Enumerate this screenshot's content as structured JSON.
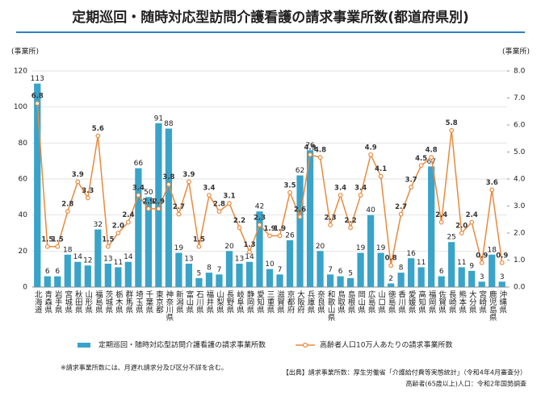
{
  "chart_data": {
    "type": "bar_line",
    "title": "定期巡回・随時対応型訪問介護看護の請求事業所数(都道府県別)",
    "y_label": "(事業所)",
    "y2_label": "(事業所)",
    "categories": [
      "北海道",
      "青森県",
      "岩手県",
      "宮城県",
      "秋田県",
      "山形県",
      "福島県",
      "茨城県",
      "栃木県",
      "群馬県",
      "埼玉県",
      "千葉県",
      "東京都",
      "神奈川県",
      "新潟県",
      "富山県",
      "石川県",
      "福井県",
      "山梨県",
      "長野県",
      "岐阜県",
      "静岡県",
      "愛知県",
      "三重県",
      "滋賀県",
      "京都府",
      "大阪府",
      "兵庫県",
      "奈良県",
      "和歌山県",
      "鳥取県",
      "島根県",
      "岡山県",
      "広島県",
      "山口県",
      "徳島県",
      "香川県",
      "愛媛県",
      "高知県",
      "福岡県",
      "佐賀県",
      "長崎県",
      "熊本県",
      "大分県",
      "宮崎県",
      "鹿児島県",
      "沖縄県"
    ],
    "series": [
      {
        "name": "定期巡回・随時対応型訪問介護看護の請求事業所数",
        "type": "bar",
        "color": "#3aa3c9",
        "values": [
          113,
          6,
          6,
          18,
          14,
          12,
          32,
          13,
          11,
          14,
          66,
          50,
          91,
          88,
          19,
          13,
          5,
          8,
          7,
          20,
          13,
          14,
          42,
          10,
          7,
          26,
          62,
          76,
          20,
          7,
          6,
          5,
          19,
          40,
          19,
          2,
          8,
          16,
          11,
          67,
          6,
          25,
          11,
          9,
          3,
          18,
          3
        ]
      },
      {
        "name": "高齢者人口10万人あたりの請求事業所数",
        "type": "line",
        "axis": "y2",
        "color": "#e98a3c",
        "values": [
          6.8,
          1.5,
          1.5,
          2.8,
          3.9,
          3.3,
          5.6,
          1.5,
          2.0,
          2.4,
          3.4,
          2.9,
          2.9,
          3.8,
          2.7,
          3.9,
          1.5,
          3.4,
          2.8,
          3.1,
          2.2,
          1.3,
          2.3,
          1.9,
          1.9,
          3.5,
          2.6,
          4.9,
          4.8,
          2.3,
          3.4,
          2.2,
          3.4,
          4.9,
          4.1,
          0.8,
          2.7,
          3.7,
          4.5,
          4.8,
          2.4,
          5.8,
          2.0,
          2.4,
          0.9,
          3.6,
          0.9
        ],
        "value_labels": [
          "6.8",
          "1.5",
          "1.5",
          "2.8",
          "3.9",
          "3.3",
          "5.6",
          "1.5",
          "2.0",
          "2.4",
          "3.4",
          "2.9",
          "2.9",
          "3.8",
          "2.7",
          "3.9",
          "1.5",
          "3.4",
          "2.8",
          "3.1",
          "2.2",
          "1.3",
          "2.3",
          "1.9",
          "1.9",
          "3.5",
          "2.6",
          "4.9",
          "4.8",
          "2.3",
          "3.4",
          "2.2",
          "3.4",
          "4.9",
          "4.1",
          "0.8",
          "2.7",
          "3.7",
          "4.5",
          "4.8",
          "2.4",
          "5.8",
          "2.0",
          "2.4",
          "0.9",
          "3.6",
          "0.9"
        ]
      }
    ],
    "ylim": [
      0,
      120
    ],
    "yticks": [
      0,
      20,
      40,
      60,
      80,
      100,
      120
    ],
    "y2lim": [
      0,
      8
    ],
    "y2ticks": [
      {
        "value": 0,
        "label": "0.0"
      },
      {
        "value": 1,
        "label": "1.0"
      },
      {
        "value": 2,
        "label": "2.0"
      },
      {
        "value": 3,
        "label": "3.0"
      },
      {
        "value": 4,
        "label": "4.0"
      },
      {
        "value": 5,
        "label": "5.0"
      },
      {
        "value": 6,
        "label": "6.0"
      },
      {
        "value": 7,
        "label": "7.0"
      },
      {
        "value": 8,
        "label": "8.0"
      }
    ],
    "grid": true,
    "legend": "bottom",
    "notes": [
      "※請求事業所数には、月遅れ請求分及び区分不詳を含む。",
      "【出典】請求事業所数：厚生労働省「介護給付費等実態統計」（令和4年4月審査分）",
      "高齢者(65歳以上)人口：令和2年国勢調査"
    ]
  }
}
